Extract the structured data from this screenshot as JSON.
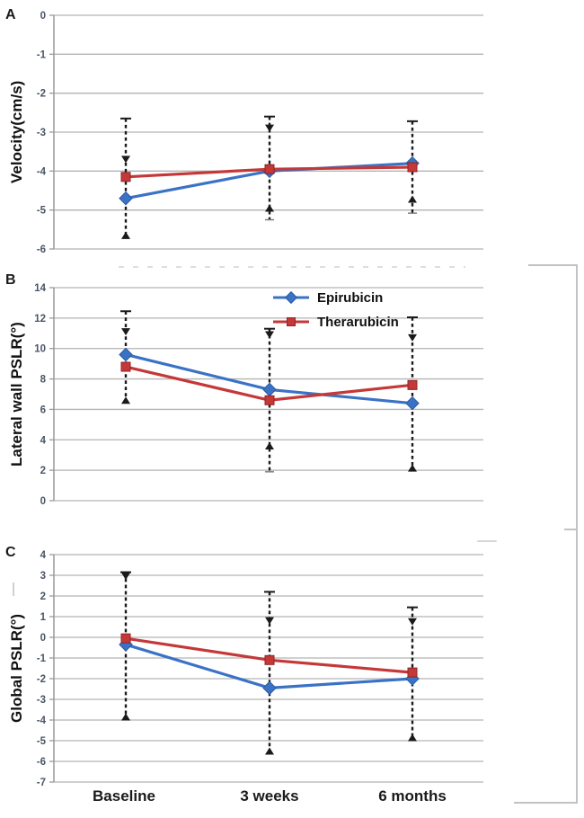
{
  "figure": {
    "background": "#ffffff",
    "x_axis_labels": [
      "Baseline",
      "3 weeks",
      "6 months"
    ],
    "legend": {
      "items": [
        {
          "label": "Epirubicin",
          "color": "#3a72c6",
          "border": "#2a5a9e",
          "marker": "diamond"
        },
        {
          "label": "Therarubicin",
          "color": "#c53838",
          "border": "#8e2426",
          "marker": "square"
        }
      ]
    },
    "colors": {
      "gridline": "#b3b3b3",
      "axis": "#9a9a9a",
      "error_bar": "#1a1a1a",
      "bracket": "#c2c2c2"
    }
  },
  "chart_data": [
    {
      "type": "line",
      "panel_label": "A",
      "ylabel": "Velocity(cm/s)",
      "categories": [
        "Baseline",
        "3 weeks",
        "6 months"
      ],
      "ylim": [
        -6,
        0
      ],
      "yticks": [
        0,
        -1,
        -2,
        -3,
        -4,
        -5,
        -6
      ],
      "grid": true,
      "series": [
        {
          "name": "Epirubicin",
          "color": "#3a72c6",
          "border": "#2a5a9e",
          "marker": "diamond",
          "values": [
            -4.7,
            -4.0,
            -3.8
          ]
        },
        {
          "name": "Therarubicin",
          "color": "#c53838",
          "border": "#8e2426",
          "marker": "square",
          "values": [
            -4.15,
            -3.95,
            -3.9
          ]
        }
      ],
      "error_bars": [
        {
          "category_index": 0,
          "top": -2.65,
          "inner_top": -3.7,
          "bottom": -5.65
        },
        {
          "category_index": 1,
          "top": -2.6,
          "inner_top": -2.9,
          "bottom": -4.95,
          "tail": -5.25
        },
        {
          "category_index": 2,
          "top": -2.72,
          "bottom": -4.72,
          "tail": -5.08
        }
      ]
    },
    {
      "type": "line",
      "panel_label": "B",
      "ylabel": "Lateral wall PSLR(°)",
      "categories": [
        "Baseline",
        "3 weeks",
        "6 months"
      ],
      "ylim": [
        0,
        14
      ],
      "yticks": [
        14,
        12,
        10,
        8,
        6,
        4,
        2,
        0
      ],
      "grid": true,
      "legend_position": "inside-top",
      "series": [
        {
          "name": "Epirubicin",
          "color": "#3a72c6",
          "border": "#2a5a9e",
          "marker": "diamond",
          "values": [
            9.6,
            7.3,
            6.4
          ]
        },
        {
          "name": "Therarubicin",
          "color": "#c53838",
          "border": "#8e2426",
          "marker": "square",
          "values": [
            8.8,
            6.6,
            7.6
          ]
        }
      ],
      "error_bars": [
        {
          "category_index": 0,
          "top": 12.45,
          "inner_top": 11.1,
          "bottom": 6.6
        },
        {
          "category_index": 1,
          "top": 11.3,
          "inner_top": 10.9,
          "bottom": 3.6,
          "tail": 1.9
        },
        {
          "category_index": 2,
          "top": 12.05,
          "inner_top": 10.7,
          "bottom": 2.15
        }
      ]
    },
    {
      "type": "line",
      "panel_label": "C",
      "ylabel": "Global PSLR(°)",
      "categories": [
        "Baseline",
        "3 weeks",
        "6 months"
      ],
      "ylim": [
        -7,
        4
      ],
      "yticks": [
        4,
        3,
        2,
        1,
        0,
        -1,
        -2,
        -3,
        -4,
        -5,
        -6,
        -7
      ],
      "grid": true,
      "series": [
        {
          "name": "Epirubicin",
          "color": "#3a72c6",
          "border": "#2a5a9e",
          "marker": "diamond",
          "values": [
            -0.35,
            -2.45,
            -2.0
          ]
        },
        {
          "name": "Therarubicin",
          "color": "#c53838",
          "border": "#8e2426",
          "marker": "square",
          "values": [
            -0.05,
            -1.1,
            -1.7
          ]
        }
      ],
      "error_bars": [
        {
          "category_index": 0,
          "top": 3.15,
          "inner_top": 2.95,
          "bottom": -3.85
        },
        {
          "category_index": 1,
          "top": 2.2,
          "inner_top": 0.8,
          "bottom": -5.5
        },
        {
          "category_index": 2,
          "top": 1.45,
          "inner_top": 0.75,
          "bottom": -4.85
        }
      ]
    }
  ]
}
